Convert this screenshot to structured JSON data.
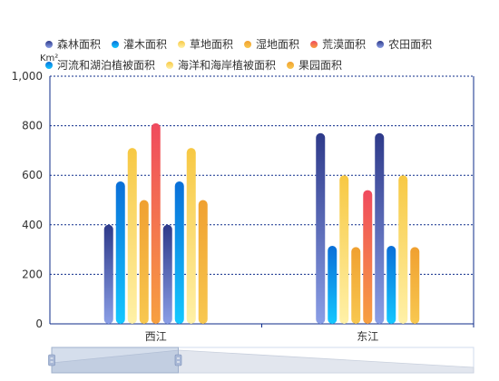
{
  "chart_data": {
    "type": "bar",
    "y_unit": "Km²",
    "categories": [
      "西江",
      "东江"
    ],
    "ylim": [
      0,
      1000
    ],
    "yticks": [
      0,
      200,
      400,
      600,
      800,
      1000
    ],
    "ytick_labels": [
      "0",
      "200",
      "400",
      "600",
      "800",
      "1,000"
    ],
    "grid": true,
    "legend_position": "top",
    "series": [
      {
        "name": "森林面积",
        "values": [
          400,
          770
        ],
        "color_top": "#2e3a8a",
        "color_bottom": "#8a9ee6"
      },
      {
        "name": "灌木面积",
        "values": [
          575,
          315
        ],
        "color_top": "#0a6fd8",
        "color_bottom": "#14c8ff"
      },
      {
        "name": "草地面积",
        "values": [
          710,
          600
        ],
        "color_top": "#f7c843",
        "color_bottom": "#fff1a8"
      },
      {
        "name": "湿地面积",
        "values": [
          500,
          310
        ],
        "color_top": "#f0a030",
        "color_bottom": "#f8c850"
      },
      {
        "name": "荒漠面积",
        "values": [
          810,
          540
        ],
        "color_top": "#f04a5e",
        "color_bottom": "#f7a040"
      },
      {
        "name": "农田面积",
        "values": [
          400,
          770
        ],
        "color_top": "#2e3a8a",
        "color_bottom": "#8a9ee6"
      },
      {
        "name": "河流和湖泊植被面积",
        "values": [
          575,
          315
        ],
        "color_top": "#0a6fd8",
        "color_bottom": "#14c8ff"
      },
      {
        "name": "海洋和海岸植被面积",
        "values": [
          710,
          600
        ],
        "color_top": "#f7c843",
        "color_bottom": "#fff1a8"
      },
      {
        "name": "果园面积",
        "values": [
          500,
          310
        ],
        "color_top": "#f0a030",
        "color_bottom": "#f8c850"
      }
    ]
  },
  "datazoom": {
    "selected_start": 0,
    "selected_end": 0.3
  }
}
